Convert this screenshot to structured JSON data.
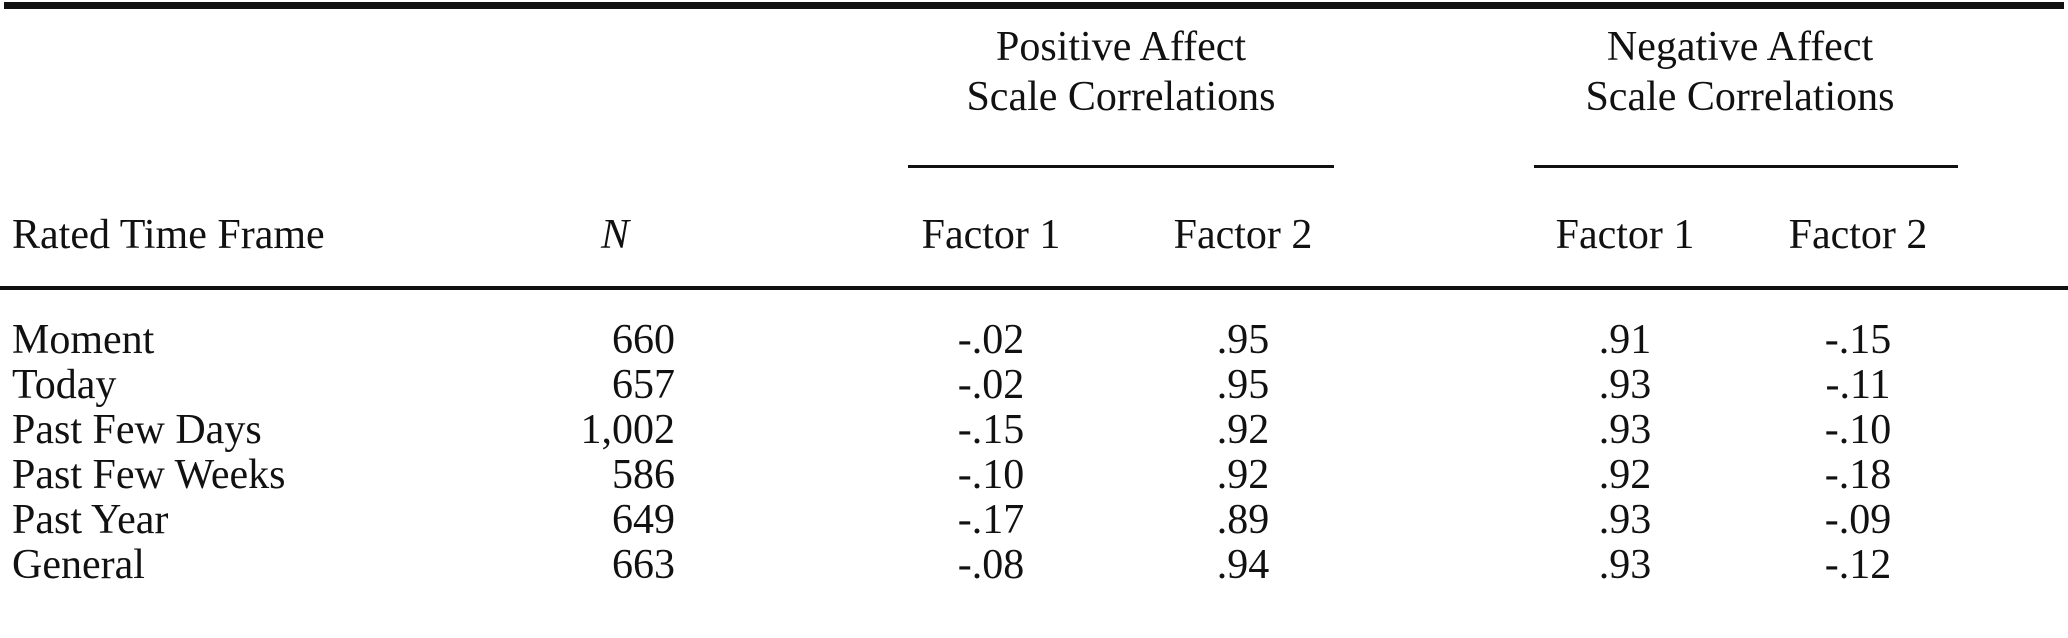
{
  "colors": {
    "text": "#111111",
    "background": "#ffffff",
    "rule": "#111111"
  },
  "table": {
    "col_groups": [
      {
        "title_line1": "Positive Affect",
        "title_line2": "Scale Correlations"
      },
      {
        "title_line1": "Negative Affect",
        "title_line2": "Scale Correlations"
      }
    ],
    "headers": {
      "row_label": "Rated Time Frame",
      "n": "N",
      "pa_f1": "Factor 1",
      "pa_f2": "Factor 2",
      "na_f1": "Factor 1",
      "na_f2": "Factor 2"
    },
    "rows": [
      {
        "label": "Moment",
        "n": "660",
        "pa_f1": "-.02",
        "pa_f2": ".95",
        "na_f1": ".91",
        "na_f2": "-.15"
      },
      {
        "label": "Today",
        "n": "657",
        "pa_f1": "-.02",
        "pa_f2": ".95",
        "na_f1": ".93",
        "na_f2": "-.11"
      },
      {
        "label": "Past Few Days",
        "n": "1,002",
        "pa_f1": "-.15",
        "pa_f2": ".92",
        "na_f1": ".93",
        "na_f2": "-.10"
      },
      {
        "label": "Past Few Weeks",
        "n": "586",
        "pa_f1": "-.10",
        "pa_f2": ".92",
        "na_f1": ".92",
        "na_f2": "-.18"
      },
      {
        "label": "Past Year",
        "n": "649",
        "pa_f1": "-.17",
        "pa_f2": ".89",
        "na_f1": ".93",
        "na_f2": "-.09"
      },
      {
        "label": "General",
        "n": "663",
        "pa_f1": "-.08",
        "pa_f2": ".94",
        "na_f1": ".93",
        "na_f2": "-.12"
      }
    ]
  }
}
